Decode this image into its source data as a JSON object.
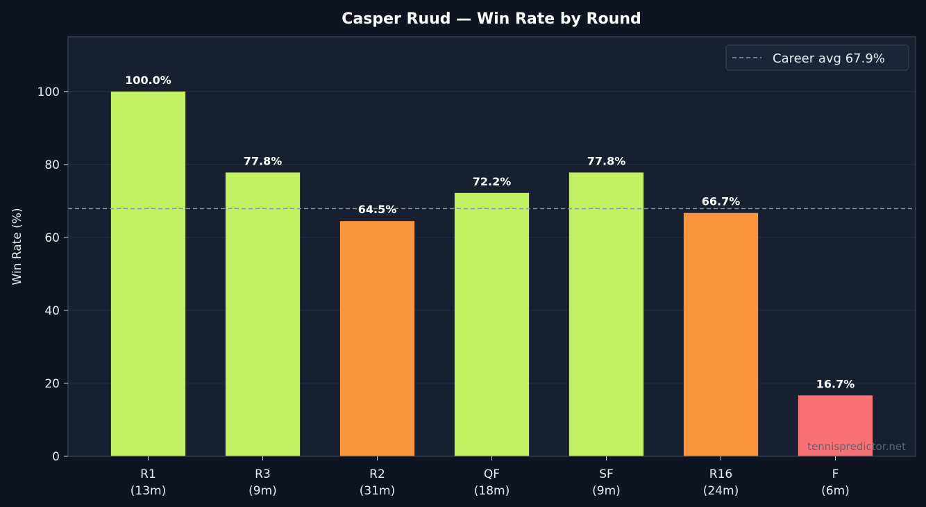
{
  "chart_data": {
    "type": "bar",
    "title": "Casper Ruud — Win Rate by Round",
    "xlabel": "",
    "ylabel": "Win Rate (%)",
    "ylim": [
      0,
      115
    ],
    "yticks": [
      0,
      20,
      40,
      60,
      80,
      100
    ],
    "grid": true,
    "categories": [
      {
        "round": "R1",
        "matches": "(13m)"
      },
      {
        "round": "R3",
        "matches": "(9m)"
      },
      {
        "round": "R2",
        "matches": "(31m)"
      },
      {
        "round": "QF",
        "matches": "(18m)"
      },
      {
        "round": "SF",
        "matches": "(9m)"
      },
      {
        "round": "R16",
        "matches": "(24m)"
      },
      {
        "round": "F",
        "matches": "(6m)"
      }
    ],
    "values": [
      100.0,
      77.8,
      64.5,
      72.2,
      77.8,
      66.7,
      16.7
    ],
    "value_labels": [
      "100.0%",
      "77.8%",
      "64.5%",
      "72.2%",
      "77.8%",
      "66.7%",
      "16.7%"
    ],
    "bar_colors": [
      "#c2f063",
      "#c2f063",
      "#fb953e",
      "#c2f063",
      "#c2f063",
      "#fb953e",
      "#f87172"
    ],
    "reference_line": {
      "value": 67.9,
      "label": "Career avg 67.9%",
      "style": "dashed",
      "color": "#8b93a7"
    },
    "legend_position": "top-right"
  },
  "watermark": "tennispredictor.net",
  "colors": {
    "page_bg": "#0e1421",
    "plot_bg": "#171f31",
    "axis": "#3b4658",
    "grid": "#233044"
  }
}
